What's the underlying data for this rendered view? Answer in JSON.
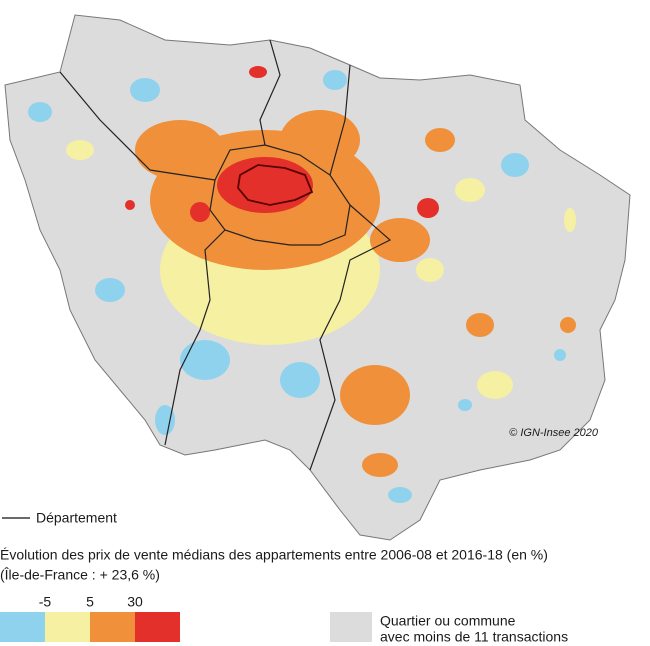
{
  "legend": {
    "departement": "Département"
  },
  "title": "Évolution des prix de vente médians des appartements entre 2006-08 et 2016-18 (en %)",
  "subtitle": "(Île-de-France : + 23,6 %)",
  "scale": {
    "thresholds": [
      -5,
      5,
      30
    ],
    "colors": [
      "#8fd2ee",
      "#f6f0a2",
      "#f0903a",
      "#e3302a"
    ]
  },
  "no_data": {
    "color": "#dcdcdc",
    "lines": [
      "Quartier ou commune",
      "avec moins de 11 transactions"
    ]
  },
  "credit": "© IGN-Insee 2020"
}
